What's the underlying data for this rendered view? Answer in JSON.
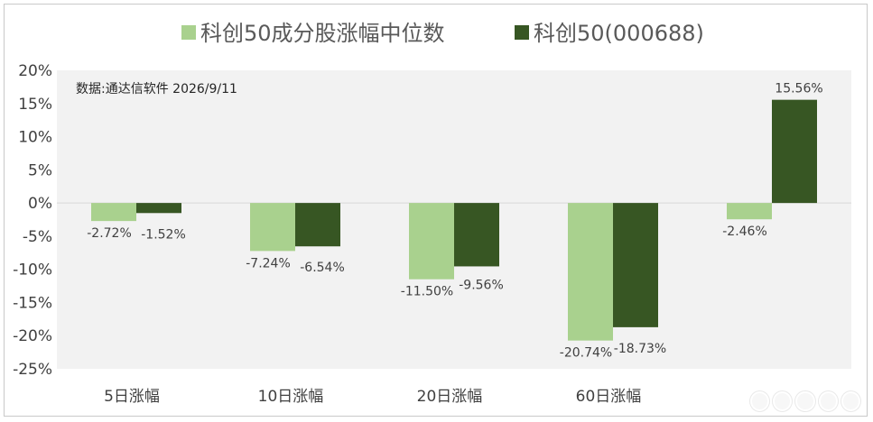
{
  "chart_data": {
    "type": "bar",
    "categories": [
      "5日涨幅",
      "10日涨幅",
      "20日涨幅",
      "60日涨幅",
      ""
    ],
    "series": [
      {
        "name": "科创50成分股涨幅中位数",
        "values": [
          -2.72,
          -7.24,
          -11.5,
          -20.74,
          -2.46
        ],
        "labels": [
          "-2.72%",
          "-7.24%",
          "-11.50%",
          "-20.74%",
          "-2.46%"
        ],
        "color": "#a9d18e"
      },
      {
        "name": "科创50(000688)",
        "values": [
          -1.52,
          -6.54,
          -9.56,
          -18.73,
          15.56
        ],
        "labels": [
          "-1.52%",
          "-6.54%",
          "-9.56%",
          "-18.73%",
          "15.56%"
        ],
        "color": "#375623"
      }
    ],
    "ylim": [
      -25,
      20
    ],
    "yticks": [
      "20%",
      "15%",
      "10%",
      "5%",
      "0%",
      "-5%",
      "-10%",
      "-15%",
      "-20%",
      "-25%"
    ],
    "annotation": "数据:通达信软件 2026/9/11",
    "legend_position": "top",
    "plot_background": "#f2f2f2",
    "grid": false
  }
}
